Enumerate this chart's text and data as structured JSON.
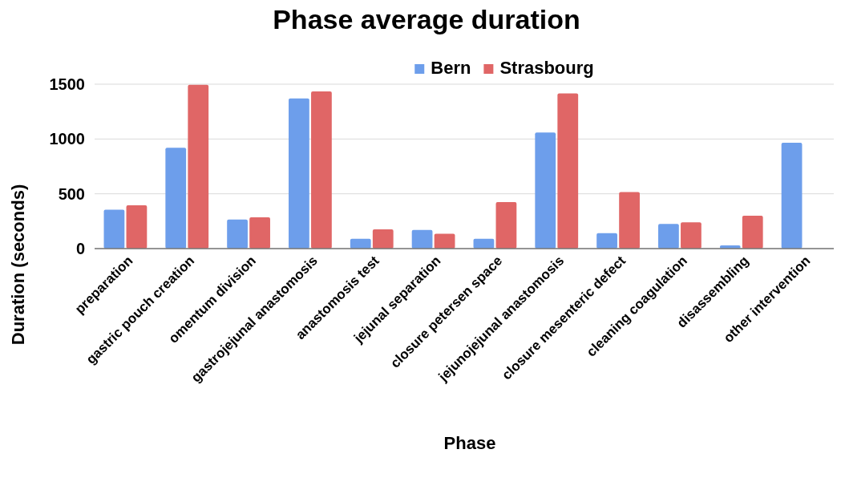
{
  "chart_data": {
    "type": "bar",
    "title": "Phase average duration",
    "xlabel": "Phase",
    "ylabel": "Duration (seconds)",
    "categories": [
      "preparation",
      "gastric pouch creation",
      "omentum division",
      "gastrojejunal anastomosis",
      "anastomosis test",
      "jejunal separation",
      "closure petersen space",
      "jejunojejunal anastomosis",
      "closure mesenteric defect",
      "cleaning coagulation",
      "disassembling",
      "other intervention"
    ],
    "series": [
      {
        "name": "Bern",
        "color": "#6d9eeb",
        "values": [
          355,
          920,
          265,
          1370,
          90,
          170,
          90,
          1060,
          140,
          225,
          30,
          965
        ]
      },
      {
        "name": "Strasbourg",
        "color": "#e06666",
        "values": [
          395,
          1495,
          285,
          1435,
          175,
          135,
          425,
          1415,
          515,
          240,
          300,
          null
        ]
      }
    ],
    "ylim": [
      0,
      1500
    ],
    "yticks": [
      0,
      500,
      1000,
      1500
    ],
    "grid": "y",
    "legend": "top"
  }
}
